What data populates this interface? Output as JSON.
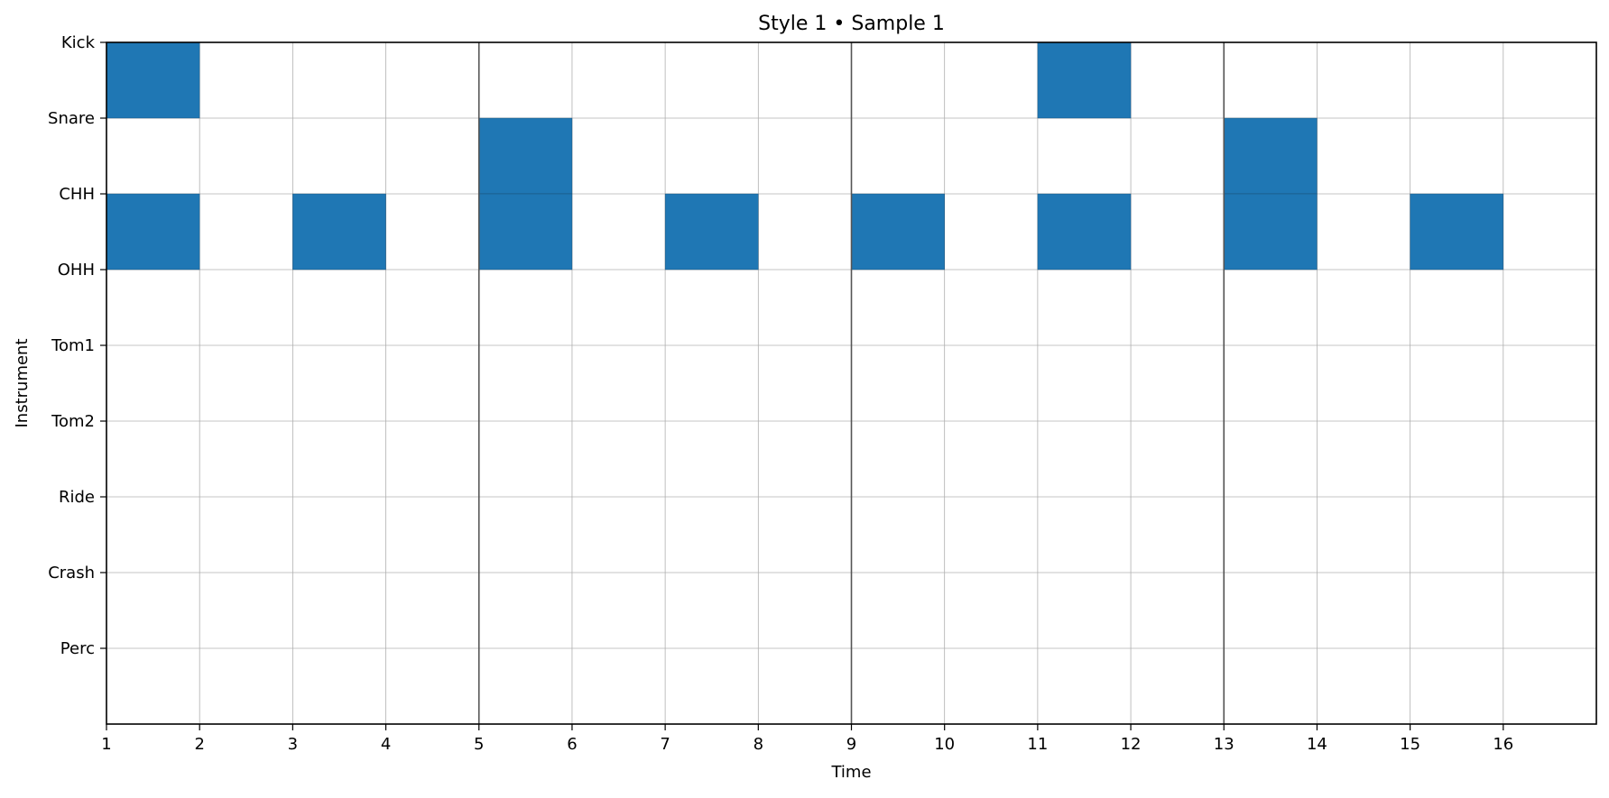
{
  "chart_data": {
    "type": "heatmap",
    "title": "Style 1 • Sample 1",
    "xlabel": "Time",
    "ylabel": "Instrument",
    "instruments": [
      "Kick",
      "Snare",
      "CHH",
      "OHH",
      "Tom1",
      "Tom2",
      "Ride",
      "Crash",
      "Perc"
    ],
    "xticks": [
      1,
      2,
      3,
      4,
      5,
      6,
      7,
      8,
      9,
      10,
      11,
      12,
      13,
      14,
      15,
      16
    ],
    "xlim": [
      1,
      17
    ],
    "bar_lines": [
      5,
      9,
      13
    ],
    "grid": true,
    "hits": [
      {
        "instrument": "Kick",
        "step": 1
      },
      {
        "instrument": "Kick",
        "step": 11
      },
      {
        "instrument": "Snare",
        "step": 5
      },
      {
        "instrument": "Snare",
        "step": 13
      },
      {
        "instrument": "CHH",
        "step": 1
      },
      {
        "instrument": "CHH",
        "step": 3
      },
      {
        "instrument": "CHH",
        "step": 5
      },
      {
        "instrument": "CHH",
        "step": 7
      },
      {
        "instrument": "CHH",
        "step": 9
      },
      {
        "instrument": "CHH",
        "step": 11
      },
      {
        "instrument": "CHH",
        "step": 13
      },
      {
        "instrument": "CHH",
        "step": 15
      }
    ],
    "colors": {
      "hit": "#1f77b4",
      "grid": "#b0b0b0",
      "bar_line": "#555555"
    }
  }
}
